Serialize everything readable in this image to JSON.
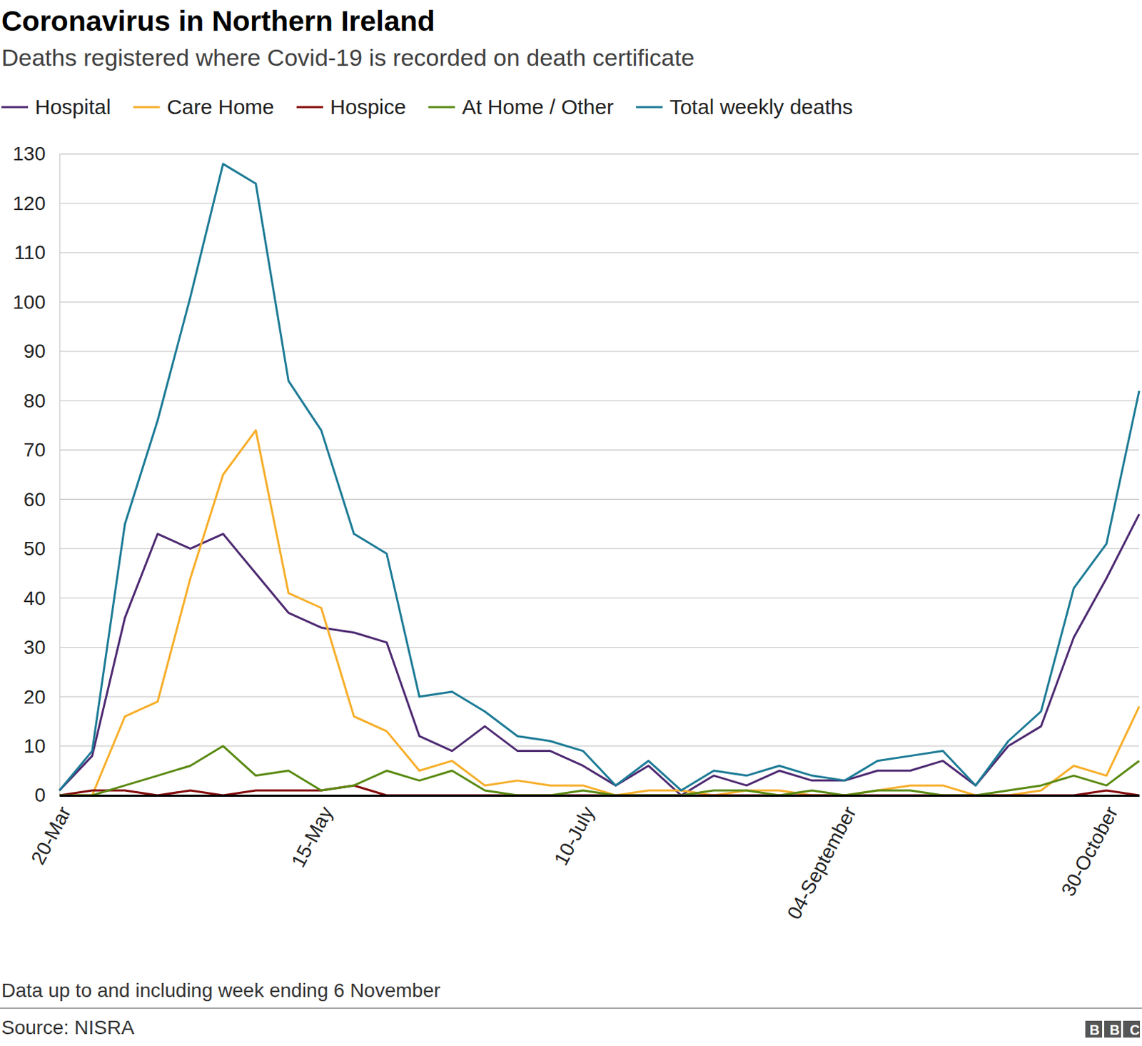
{
  "chart_data": {
    "type": "line",
    "title": "Coronavirus in Northern Ireland",
    "subtitle": "Deaths registered where Covid-19 is recorded on death certificate",
    "note": "Data up to and including week ending 6 November",
    "source": "Source: NISRA",
    "logo": "BBC",
    "categories": [
      "20-Mar",
      null,
      null,
      null,
      null,
      null,
      null,
      null,
      "15-May",
      null,
      null,
      null,
      null,
      null,
      null,
      null,
      "10-July",
      null,
      null,
      null,
      null,
      null,
      null,
      null,
      "04-September",
      null,
      null,
      null,
      null,
      null,
      null,
      null,
      "30-October",
      null
    ],
    "series": [
      {
        "name": "Hospital",
        "color": "#4e2a72",
        "values": [
          1,
          8,
          36,
          53,
          50,
          53,
          45,
          37,
          34,
          33,
          31,
          12,
          9,
          14,
          9,
          9,
          6,
          2,
          6,
          0,
          4,
          2,
          5,
          3,
          3,
          5,
          5,
          7,
          2,
          10,
          14,
          32,
          44,
          57
        ]
      },
      {
        "name": "Care Home",
        "color": "#f7ae2a",
        "values": [
          0,
          0,
          16,
          19,
          44,
          65,
          74,
          41,
          38,
          16,
          13,
          5,
          7,
          2,
          3,
          2,
          2,
          0,
          1,
          1,
          0,
          1,
          1,
          0,
          0,
          1,
          2,
          2,
          0,
          0,
          1,
          6,
          4,
          18
        ]
      },
      {
        "name": "Hospice",
        "color": "#840b0b",
        "values": [
          0,
          1,
          1,
          0,
          1,
          0,
          1,
          1,
          1,
          2,
          0,
          0,
          0,
          0,
          0,
          0,
          0,
          0,
          0,
          0,
          0,
          0,
          0,
          0,
          0,
          0,
          0,
          0,
          0,
          0,
          0,
          0,
          1,
          0
        ]
      },
      {
        "name": "At Home / Other",
        "color": "#5a8a12",
        "values": [
          0,
          0,
          2,
          4,
          6,
          10,
          4,
          5,
          1,
          2,
          5,
          3,
          5,
          1,
          0,
          0,
          1,
          0,
          0,
          0,
          1,
          1,
          0,
          1,
          0,
          1,
          1,
          0,
          0,
          1,
          2,
          4,
          2,
          7
        ]
      },
      {
        "name": "Total weekly deaths",
        "color": "#1d7b96",
        "values": [
          1,
          9,
          55,
          76,
          101,
          128,
          124,
          84,
          74,
          53,
          49,
          20,
          21,
          17,
          12,
          11,
          9,
          2,
          7,
          1,
          5,
          4,
          6,
          4,
          3,
          7,
          8,
          9,
          2,
          11,
          17,
          42,
          51,
          82
        ]
      }
    ],
    "ylim": [
      0,
      130
    ],
    "yticks": [
      0,
      10,
      20,
      30,
      40,
      50,
      60,
      70,
      80,
      90,
      100,
      110,
      120,
      130
    ],
    "grid": true,
    "legend": "top"
  }
}
